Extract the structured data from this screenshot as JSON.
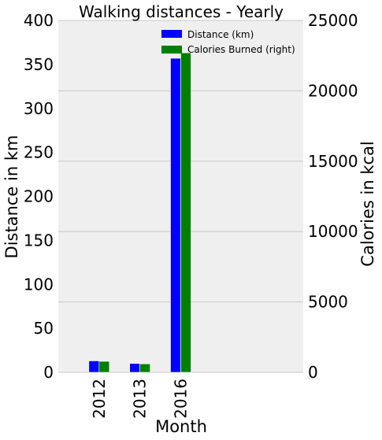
{
  "chart_data": {
    "type": "bar",
    "title": "Walking distances - Yearly",
    "xlabel": "Month",
    "ylabel": "Distance in km",
    "ylabel_right": "Calories in kcal",
    "categories": [
      "2012",
      "2013",
      "2016"
    ],
    "x_positions": [
      0,
      1,
      2
    ],
    "xlim": [
      -1,
      5
    ],
    "ylim": [
      0,
      400
    ],
    "ylim_right": [
      0,
      25000
    ],
    "yticks": [
      0,
      50,
      100,
      150,
      200,
      250,
      300,
      350,
      400
    ],
    "yticks_right": [
      0,
      5000,
      10000,
      15000,
      20000,
      25000
    ],
    "grid": "right axis gridlines",
    "legend_position": "top-right",
    "series": [
      {
        "name": "Distance (km)",
        "axis": "left",
        "color": "#0000ff",
        "values": [
          13,
          10,
          357
        ]
      },
      {
        "name": "Calories Burned (right)",
        "axis": "right",
        "color": "#008000",
        "values": [
          780,
          600,
          22700
        ]
      }
    ]
  }
}
